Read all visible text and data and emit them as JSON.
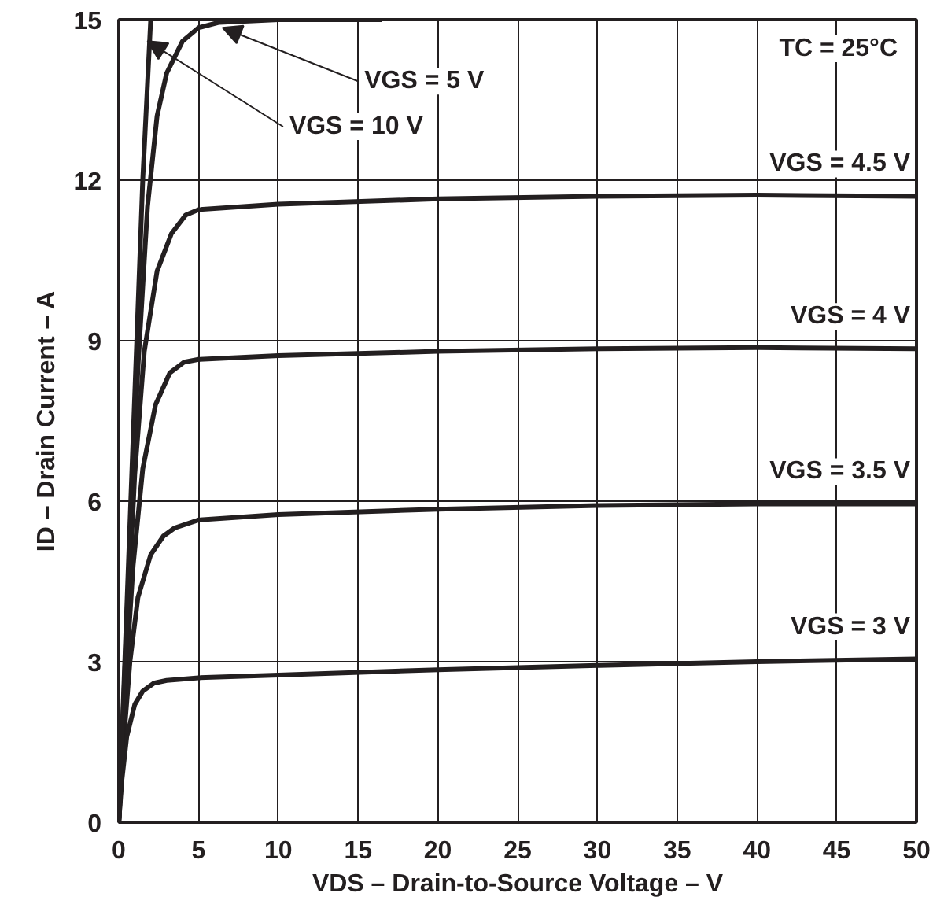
{
  "chart_data": {
    "type": "line",
    "xlabel": "VDS – Drain-to-Source Voltage – V",
    "ylabel": "ID – Drain Current – A",
    "xlim": [
      0,
      50
    ],
    "xticks": [
      0,
      5,
      10,
      15,
      20,
      25,
      30,
      35,
      40,
      45,
      50
    ],
    "ylim": [
      0,
      15
    ],
    "yticks": [
      0,
      3,
      6,
      9,
      12,
      15
    ],
    "grid": true,
    "marker": "none",
    "line_style": "solid",
    "series": [
      {
        "name": "VGS = 3 V",
        "color": "#231f20",
        "x": [
          0,
          0.2,
          0.5,
          1.0,
          1.5,
          2.2,
          3,
          5,
          10,
          20,
          30,
          40,
          50
        ],
        "values": [
          0,
          0.8,
          1.6,
          2.2,
          2.45,
          2.6,
          2.65,
          2.7,
          2.75,
          2.85,
          2.93,
          3.0,
          3.05
        ]
      },
      {
        "name": "VGS = 3.5 V",
        "color": "#231f20",
        "x": [
          0,
          0.3,
          0.7,
          1.2,
          2.0,
          2.8,
          3.5,
          5,
          10,
          20,
          30,
          40,
          50
        ],
        "values": [
          0,
          1.5,
          3.0,
          4.2,
          5.0,
          5.35,
          5.5,
          5.65,
          5.75,
          5.85,
          5.92,
          5.95,
          5.95
        ]
      },
      {
        "name": "VGS = 4 V",
        "color": "#231f20",
        "x": [
          0,
          0.4,
          0.9,
          1.5,
          2.3,
          3.2,
          4.1,
          5,
          10,
          20,
          30,
          40,
          50
        ],
        "values": [
          0,
          2.5,
          4.8,
          6.6,
          7.8,
          8.4,
          8.6,
          8.65,
          8.72,
          8.8,
          8.85,
          8.87,
          8.85
        ]
      },
      {
        "name": "VGS = 4.5 V",
        "color": "#231f20",
        "x": [
          0,
          0.5,
          1.0,
          1.6,
          2.4,
          3.3,
          4.2,
          5,
          10,
          20,
          30,
          40,
          50
        ],
        "values": [
          0,
          3.5,
          6.5,
          8.8,
          10.3,
          11.0,
          11.35,
          11.45,
          11.55,
          11.65,
          11.7,
          11.72,
          11.7
        ]
      },
      {
        "color": "#231f20",
        "x": [
          0,
          0.6,
          1.2,
          1.8,
          2.4,
          3.0,
          4.0,
          5.0,
          6.3,
          10,
          16.5
        ],
        "values": [
          0,
          4.5,
          8.5,
          11.5,
          13.2,
          14.0,
          14.6,
          14.85,
          14.95,
          15.0,
          15.0
        ]
      },
      {
        "color": "#231f20",
        "x": [
          0,
          0.5,
          1.0,
          1.5,
          2.0
        ],
        "values": [
          0,
          4.0,
          8.0,
          12.0,
          15.0
        ]
      }
    ],
    "annotations": [
      {
        "text": "VGS = 5 V",
        "x": 6.5,
        "y": 14.85
      },
      {
        "text": "VGS = 10 V",
        "x": 1.8,
        "y": 14.6
      },
      "TC = 25°C"
    ]
  }
}
